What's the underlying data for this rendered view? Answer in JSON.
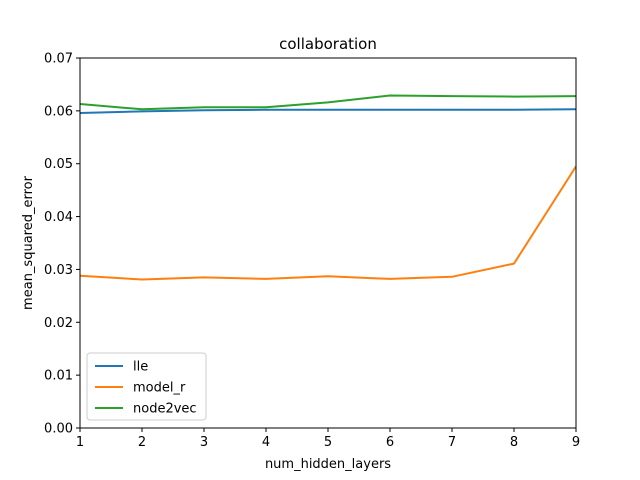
{
  "chart_data": {
    "type": "line",
    "title": "collaboration",
    "xlabel": "num_hidden_layers",
    "ylabel": "mean_squared_error",
    "xlim": [
      1,
      9
    ],
    "ylim": [
      0,
      0.07
    ],
    "xticks": [
      1,
      2,
      3,
      4,
      5,
      6,
      7,
      8,
      9
    ],
    "yticks": [
      "0.00",
      "0.01",
      "0.02",
      "0.03",
      "0.04",
      "0.05",
      "0.06",
      "0.07"
    ],
    "grid": false,
    "legend_position": "lower-left",
    "x": [
      1,
      2,
      3,
      4,
      5,
      6,
      7,
      8,
      9
    ],
    "series": [
      {
        "name": "lle",
        "color": "#1f77b4",
        "values": [
          0.0596,
          0.0599,
          0.0601,
          0.0602,
          0.0602,
          0.0602,
          0.0602,
          0.0602,
          0.0603
        ]
      },
      {
        "name": "model_r",
        "color": "#ff7f0e",
        "values": [
          0.0288,
          0.0281,
          0.0285,
          0.0282,
          0.0287,
          0.0282,
          0.0286,
          0.0311,
          0.0495
        ]
      },
      {
        "name": "node2vec",
        "color": "#2ca02c",
        "values": [
          0.0613,
          0.0603,
          0.0607,
          0.0607,
          0.0616,
          0.0629,
          0.0628,
          0.0627,
          0.0628
        ]
      }
    ]
  }
}
